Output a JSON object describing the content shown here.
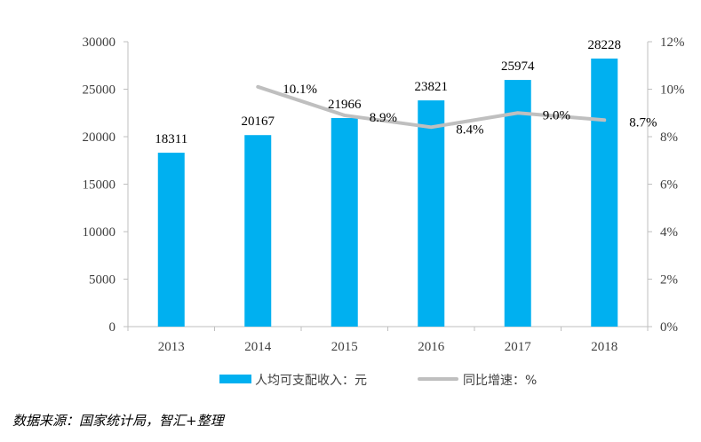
{
  "chart_data": {
    "type": "bar",
    "categories": [
      "2013",
      "2014",
      "2015",
      "2016",
      "2017",
      "2018"
    ],
    "series": [
      {
        "name": "人均可支配收入：元",
        "type": "bar",
        "axis": "left",
        "color": "#00B0F0",
        "values": [
          18311,
          20167,
          21966,
          23821,
          25974,
          28228
        ],
        "labels": [
          "18311",
          "20167",
          "21966",
          "23821",
          "25974",
          "28228"
        ]
      },
      {
        "name": "同比增速：%",
        "type": "line",
        "axis": "right",
        "color": "#BFBFBF",
        "x": [
          "2014",
          "2015",
          "2016",
          "2017",
          "2018"
        ],
        "values": [
          10.1,
          8.9,
          8.4,
          9.0,
          8.7
        ],
        "labels": [
          "10.1%",
          "8.9%",
          "8.4%",
          "9.0%",
          "8.7%"
        ]
      }
    ],
    "left_axis": {
      "ylim": [
        0,
        30000
      ],
      "ticks": [
        "0",
        "5000",
        "10000",
        "15000",
        "20000",
        "25000",
        "30000"
      ]
    },
    "right_axis": {
      "ylim": [
        0,
        12
      ],
      "ticks": [
        "0%",
        "2%",
        "4%",
        "6%",
        "8%",
        "10%",
        "12%"
      ]
    },
    "legend": "bottom",
    "grid": false
  },
  "source_text": "数据来源：国家统计局，智汇+整理"
}
